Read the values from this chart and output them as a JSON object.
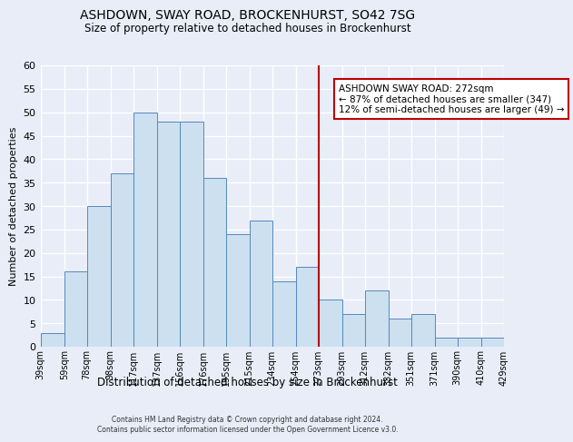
{
  "title": "ASHDOWN, SWAY ROAD, BROCKENHURST, SO42 7SG",
  "subtitle": "Size of property relative to detached houses in Brockenhurst",
  "xlabel": "Distribution of detached houses by size in Brockenhurst",
  "ylabel": "Number of detached properties",
  "bin_labels": [
    "39sqm",
    "59sqm",
    "78sqm",
    "98sqm",
    "117sqm",
    "137sqm",
    "156sqm",
    "176sqm",
    "195sqm",
    "215sqm",
    "234sqm",
    "254sqm",
    "273sqm",
    "293sqm",
    "312sqm",
    "332sqm",
    "351sqm",
    "371sqm",
    "390sqm",
    "410sqm",
    "429sqm"
  ],
  "bar_heights": [
    3,
    16,
    30,
    37,
    50,
    48,
    48,
    36,
    24,
    27,
    14,
    17,
    10,
    7,
    12,
    6,
    7,
    2,
    2,
    2
  ],
  "bar_color": "#cce0f0",
  "bar_edge_color": "#5588bb",
  "ylim": [
    0,
    60
  ],
  "yticks": [
    0,
    5,
    10,
    15,
    20,
    25,
    30,
    35,
    40,
    45,
    50,
    55,
    60
  ],
  "vline_x": 273,
  "vline_color": "#bb0000",
  "annotation_title": "ASHDOWN SWAY ROAD: 272sqm",
  "annotation_line1": "← 87% of detached houses are smaller (347)",
  "annotation_line2": "12% of semi-detached houses are larger (49) →",
  "annotation_box_facecolor": "#ffffff",
  "annotation_box_edgecolor": "#bb0000",
  "footer_line1": "Contains HM Land Registry data © Crown copyright and database right 2024.",
  "footer_line2": "Contains public sector information licensed under the Open Government Licence v3.0.",
  "background_color": "#e8edf8",
  "plot_bg_color": "#e8edf8",
  "grid_color": "#ffffff",
  "bin_edges": [
    39,
    59,
    78,
    98,
    117,
    137,
    156,
    176,
    195,
    215,
    234,
    254,
    273,
    293,
    312,
    332,
    351,
    371,
    390,
    410,
    429
  ]
}
